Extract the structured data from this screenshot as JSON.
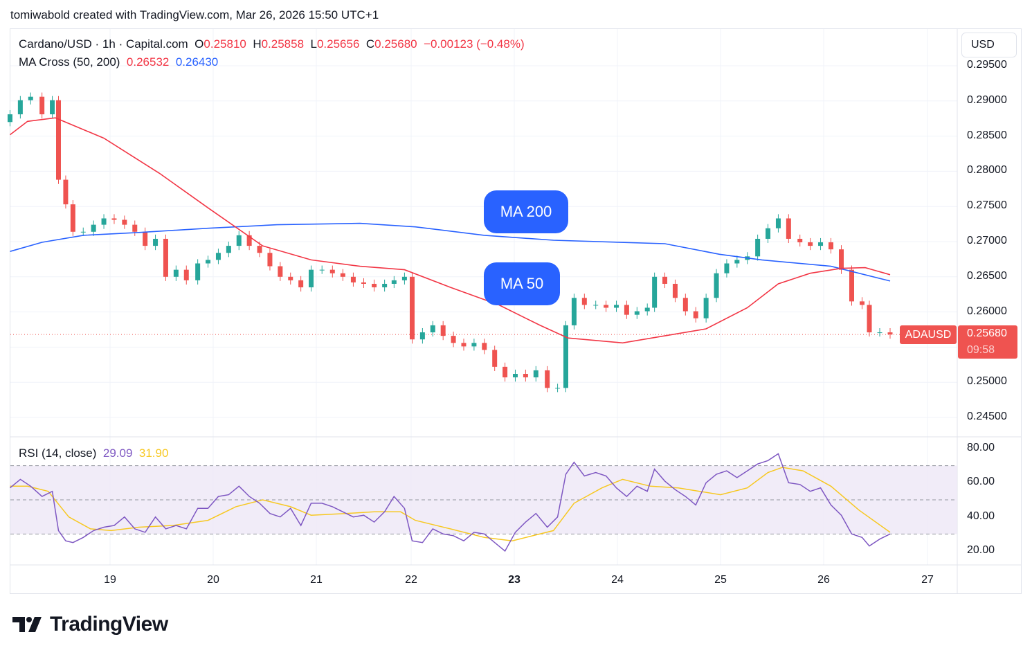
{
  "credit": "tomiwabold created with TradingView.com, Mar 26, 2026 15:50 UTC+1",
  "legend": {
    "symbol": "Cardano/USD · 1h · Capital.com",
    "o_label": "O",
    "o": "0.25810",
    "h_label": "H",
    "h": "0.25858",
    "l_label": "L",
    "l": "0.25656",
    "c_label": "C",
    "c": "0.25680",
    "change": "−0.00123 (−0.48%)",
    "ma_title": "MA Cross (50, 200)",
    "ma50": "0.26532",
    "ma200": "0.26430",
    "rsi_title": "RSI (14, close)",
    "rsi": "29.09",
    "rsi_ma": "31.90"
  },
  "currency_button": "USD",
  "price_ticks": [
    "0.29500",
    "0.29000",
    "0.28500",
    "0.28000",
    "0.27500",
    "0.27000",
    "0.26500",
    "0.26000",
    "0.25000",
    "0.24500"
  ],
  "rsi_ticks": [
    "80.00",
    "60.00",
    "40.00",
    "20.00"
  ],
  "day_ticks": [
    "19",
    "20",
    "21",
    "22",
    "23",
    "24",
    "25",
    "26",
    "27"
  ],
  "current": {
    "symbol": "ADAUSD",
    "price": "0.25680",
    "countdown": "09:58"
  },
  "annotations": {
    "ma200": "MA 200",
    "ma50": "MA 50"
  },
  "brand": "TradingView",
  "colors": {
    "up": "#26a69a",
    "down": "#ef5350",
    "ma50": "#f23645",
    "ma200": "#2962ff",
    "rsi": "#7e57c2",
    "rsi_ma": "#f7c821",
    "rsi_band": "#ede7f6"
  },
  "chart_data": [
    {
      "type": "candlestick",
      "xlabel": "",
      "ylabel": "",
      "x_unit": "day of March 2026",
      "ylim": [
        0.2425,
        0.2965
      ],
      "grid": true,
      "closes": [
        [
          18.03,
          0.2881
        ],
        [
          18.13,
          0.2901
        ],
        [
          18.23,
          0.2906
        ],
        [
          18.34,
          0.2881
        ],
        [
          18.44,
          0.2901
        ],
        [
          18.5,
          0.2788
        ],
        [
          18.57,
          0.2753
        ],
        [
          18.64,
          0.2714
        ],
        [
          18.74,
          0.2714
        ],
        [
          18.84,
          0.2724
        ],
        [
          18.94,
          0.2733
        ],
        [
          19.04,
          0.2731
        ],
        [
          19.14,
          0.2724
        ],
        [
          19.24,
          0.2714
        ],
        [
          19.34,
          0.2694
        ],
        [
          19.44,
          0.2704
        ],
        [
          19.54,
          0.265
        ],
        [
          19.64,
          0.266
        ],
        [
          19.74,
          0.2645
        ],
        [
          19.85,
          0.2669
        ],
        [
          19.95,
          0.2674
        ],
        [
          20.05,
          0.2684
        ],
        [
          20.15,
          0.2694
        ],
        [
          20.25,
          0.2709
        ],
        [
          20.35,
          0.2694
        ],
        [
          20.45,
          0.2684
        ],
        [
          20.55,
          0.2665
        ],
        [
          20.65,
          0.265
        ],
        [
          20.75,
          0.2645
        ],
        [
          20.85,
          0.2635
        ],
        [
          20.95,
          0.266
        ],
        [
          21.06,
          0.266
        ],
        [
          21.17,
          0.2655
        ],
        [
          21.28,
          0.265
        ],
        [
          21.39,
          0.2642
        ],
        [
          21.5,
          0.264
        ],
        [
          21.61,
          0.2635
        ],
        [
          21.72,
          0.264
        ],
        [
          21.82,
          0.2645
        ],
        [
          21.93,
          0.265
        ],
        [
          22.01,
          0.2561
        ],
        [
          22.11,
          0.2571
        ],
        [
          22.21,
          0.2581
        ],
        [
          22.31,
          0.2566
        ],
        [
          22.41,
          0.2556
        ],
        [
          22.51,
          0.2551
        ],
        [
          22.61,
          0.2556
        ],
        [
          22.71,
          0.2546
        ],
        [
          22.81,
          0.2522
        ],
        [
          22.91,
          0.2507
        ],
        [
          23.01,
          0.2512
        ],
        [
          23.11,
          0.2507
        ],
        [
          23.21,
          0.2517
        ],
        [
          23.32,
          0.2492
        ],
        [
          23.42,
          0.2492
        ],
        [
          23.5,
          0.2581
        ],
        [
          23.58,
          0.262
        ],
        [
          23.68,
          0.261
        ],
        [
          23.79,
          0.261
        ],
        [
          23.89,
          0.2606
        ],
        [
          23.99,
          0.261
        ],
        [
          24.09,
          0.2596
        ],
        [
          24.19,
          0.2601
        ],
        [
          24.29,
          0.2606
        ],
        [
          24.36,
          0.265
        ],
        [
          24.46,
          0.264
        ],
        [
          24.56,
          0.262
        ],
        [
          24.66,
          0.2601
        ],
        [
          24.76,
          0.2591
        ],
        [
          24.86,
          0.262
        ],
        [
          24.96,
          0.2655
        ],
        [
          25.06,
          0.2669
        ],
        [
          25.16,
          0.2674
        ],
        [
          25.26,
          0.2679
        ],
        [
          25.36,
          0.2704
        ],
        [
          25.46,
          0.2719
        ],
        [
          25.56,
          0.2733
        ],
        [
          25.66,
          0.2704
        ],
        [
          25.77,
          0.2699
        ],
        [
          25.87,
          0.2694
        ],
        [
          25.97,
          0.2699
        ],
        [
          26.07,
          0.2689
        ],
        [
          26.17,
          0.266
        ],
        [
          26.27,
          0.2615
        ],
        [
          26.37,
          0.261
        ],
        [
          26.44,
          0.2571
        ],
        [
          26.54,
          0.2571
        ],
        [
          26.64,
          0.2568
        ]
      ],
      "ma50": [
        [
          18.03,
          0.2852
        ],
        [
          18.2,
          0.2871
        ],
        [
          18.47,
          0.2876
        ],
        [
          18.94,
          0.2847
        ],
        [
          19.48,
          0.2797
        ],
        [
          19.95,
          0.2748
        ],
        [
          20.48,
          0.2694
        ],
        [
          20.95,
          0.2674
        ],
        [
          21.46,
          0.2665
        ],
        [
          21.93,
          0.266
        ],
        [
          22.38,
          0.2635
        ],
        [
          22.85,
          0.261
        ],
        [
          23.25,
          0.2581
        ],
        [
          23.52,
          0.2563
        ],
        [
          24.05,
          0.2556
        ],
        [
          24.46,
          0.2566
        ],
        [
          24.86,
          0.2576
        ],
        [
          25.26,
          0.2606
        ],
        [
          25.56,
          0.264
        ],
        [
          25.87,
          0.2655
        ],
        [
          26.17,
          0.2662
        ],
        [
          26.4,
          0.2663
        ],
        [
          26.64,
          0.2653
        ]
      ],
      "ma200": [
        [
          18.03,
          0.2686
        ],
        [
          18.34,
          0.2699
        ],
        [
          18.74,
          0.2709
        ],
        [
          19.28,
          0.2713
        ],
        [
          19.95,
          0.2719
        ],
        [
          20.62,
          0.2724
        ],
        [
          21.46,
          0.2726
        ],
        [
          22.04,
          0.2721
        ],
        [
          22.71,
          0.2709
        ],
        [
          23.38,
          0.2702
        ],
        [
          24.46,
          0.2697
        ],
        [
          24.99,
          0.2682
        ],
        [
          25.4,
          0.2674
        ],
        [
          26.07,
          0.2665
        ],
        [
          26.64,
          0.2644
        ]
      ],
      "last_price": 0.2568
    },
    {
      "type": "line",
      "title": "RSI (14, close)",
      "ylim": [
        15,
        85
      ],
      "bands": [
        30,
        50,
        70
      ],
      "series": [
        {
          "values": [
            [
              18.03,
              57
            ],
            [
              18.13,
              62
            ],
            [
              18.23,
              58
            ],
            [
              18.34,
              52
            ],
            [
              18.44,
              55
            ],
            [
              18.5,
              32
            ],
            [
              18.57,
              26
            ],
            [
              18.64,
              25
            ],
            [
              18.74,
              28
            ],
            [
              18.84,
              32
            ],
            [
              18.94,
              34
            ],
            [
              19.04,
              35
            ],
            [
              19.14,
              40
            ],
            [
              19.24,
              33
            ],
            [
              19.34,
              31
            ],
            [
              19.44,
              40
            ],
            [
              19.54,
              33
            ],
            [
              19.64,
              35
            ],
            [
              19.74,
              33
            ],
            [
              19.85,
              45
            ],
            [
              19.95,
              45
            ],
            [
              20.05,
              52
            ],
            [
              20.15,
              53
            ],
            [
              20.25,
              58
            ],
            [
              20.35,
              52
            ],
            [
              20.45,
              48
            ],
            [
              20.55,
              42
            ],
            [
              20.65,
              40
            ],
            [
              20.75,
              45
            ],
            [
              20.85,
              35
            ],
            [
              20.95,
              48
            ],
            [
              21.06,
              48
            ],
            [
              21.17,
              46
            ],
            [
              21.28,
              43
            ],
            [
              21.39,
              40
            ],
            [
              21.5,
              41
            ],
            [
              21.61,
              37
            ],
            [
              21.72,
              43
            ],
            [
              21.82,
              52
            ],
            [
              21.93,
              45
            ],
            [
              22.01,
              26
            ],
            [
              22.11,
              25
            ],
            [
              22.21,
              33
            ],
            [
              22.31,
              30
            ],
            [
              22.41,
              29
            ],
            [
              22.51,
              26
            ],
            [
              22.61,
              31
            ],
            [
              22.71,
              30
            ],
            [
              22.81,
              25
            ],
            [
              22.91,
              20
            ],
            [
              23.01,
              31
            ],
            [
              23.11,
              37
            ],
            [
              23.21,
              42
            ],
            [
              23.32,
              34
            ],
            [
              23.42,
              40
            ],
            [
              23.5,
              65
            ],
            [
              23.58,
              72
            ],
            [
              23.68,
              64
            ],
            [
              23.79,
              66
            ],
            [
              23.89,
              64
            ],
            [
              23.99,
              57
            ],
            [
              24.09,
              52
            ],
            [
              24.19,
              58
            ],
            [
              24.29,
              55
            ],
            [
              24.36,
              68
            ],
            [
              24.46,
              61
            ],
            [
              24.56,
              56
            ],
            [
              24.66,
              52
            ],
            [
              24.76,
              47
            ],
            [
              24.86,
              60
            ],
            [
              24.96,
              65
            ],
            [
              25.06,
              67
            ],
            [
              25.16,
              63
            ],
            [
              25.26,
              67
            ],
            [
              25.36,
              71
            ],
            [
              25.46,
              73
            ],
            [
              25.56,
              77
            ],
            [
              25.66,
              60
            ],
            [
              25.77,
              59
            ],
            [
              25.87,
              55
            ],
            [
              25.97,
              57
            ],
            [
              26.07,
              47
            ],
            [
              26.17,
              41
            ],
            [
              26.27,
              30
            ],
            [
              26.37,
              28
            ],
            [
              26.44,
              23
            ],
            [
              26.54,
              27
            ],
            [
              26.64,
              30
            ]
          ]
        },
        {
          "values": [
            [
              18.03,
              58
            ],
            [
              18.2,
              58
            ],
            [
              18.4,
              55
            ],
            [
              18.6,
              40
            ],
            [
              18.81,
              33
            ],
            [
              19.01,
              32
            ],
            [
              19.28,
              34
            ],
            [
              19.61,
              35
            ],
            [
              19.95,
              38
            ],
            [
              20.22,
              46
            ],
            [
              20.48,
              50
            ],
            [
              20.75,
              46
            ],
            [
              20.95,
              41
            ],
            [
              21.31,
              42
            ],
            [
              21.61,
              43
            ],
            [
              21.89,
              43
            ],
            [
              22.04,
              38
            ],
            [
              22.38,
              33
            ],
            [
              22.71,
              28
            ],
            [
              22.98,
              26
            ],
            [
              23.38,
              32
            ],
            [
              23.58,
              48
            ],
            [
              23.85,
              57
            ],
            [
              24.05,
              62
            ],
            [
              24.32,
              58
            ],
            [
              24.59,
              57
            ],
            [
              25.0,
              53
            ],
            [
              25.26,
              57
            ],
            [
              25.46,
              66
            ],
            [
              25.6,
              69
            ],
            [
              25.8,
              67
            ],
            [
              26.07,
              58
            ],
            [
              26.34,
              44
            ],
            [
              26.64,
              31
            ]
          ]
        }
      ]
    }
  ]
}
